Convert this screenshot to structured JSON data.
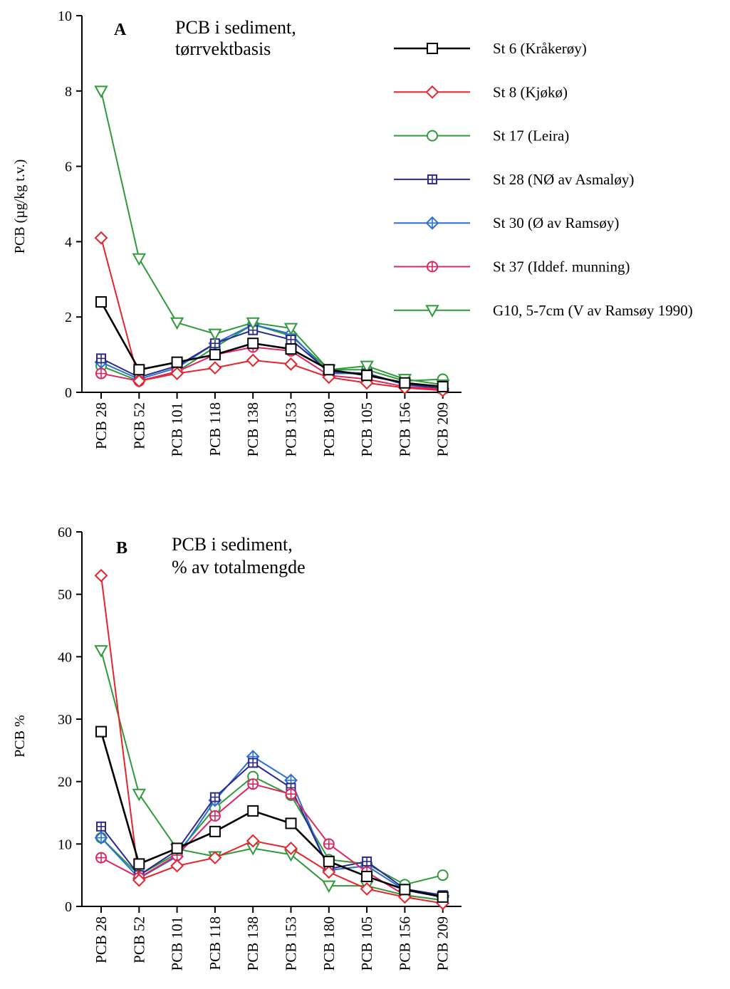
{
  "legend": [
    {
      "name": "St 6 (Kråkerøy)",
      "color": "#000000",
      "marker": "square"
    },
    {
      "name": "St 8 (Kjøkø)",
      "color": "#e8242b",
      "marker": "diamond"
    },
    {
      "name": "St 17 (Leira)",
      "color": "#2e9a3a",
      "marker": "circle"
    },
    {
      "name": "St 28 (NØ av Asmaløy)",
      "color": "#2b2a8c",
      "marker": "square-plus"
    },
    {
      "name": "St 30 (Ø av Ramsøy)",
      "color": "#2a6fd6",
      "marker": "diamond-plus"
    },
    {
      "name": "St 37 (Iddef. munning)",
      "color": "#e0245e",
      "marker": "circle-plus"
    },
    {
      "name": "G10, 5-7cm (V av Ramsøy 1990)",
      "color": "#2e9a3a",
      "marker": "triangle-down"
    }
  ],
  "chart_data": [
    {
      "type": "line",
      "panel": "A",
      "title_line1": "PCB i sediment,",
      "title_line2": "tørrvektbasis",
      "xlabel": "",
      "ylabel": "PCB (µg/kg t.v.)",
      "ylim": [
        0,
        10
      ],
      "yticks": [
        "0",
        "2",
        "4",
        "6",
        "8",
        "10"
      ],
      "categories": [
        "PCB 28",
        "PCB 52",
        "PCB 101",
        "PCB 118",
        "PCB 138",
        "PCB 153",
        "PCB 180",
        "PCB 105",
        "PCB 156",
        "PCB 209"
      ],
      "series": [
        {
          "name": "St 6 (Kråkerøy)",
          "values": [
            2.4,
            0.6,
            0.8,
            1.0,
            1.3,
            1.15,
            0.6,
            0.45,
            0.25,
            0.15
          ]
        },
        {
          "name": "St 8 (Kjøkø)",
          "values": [
            4.1,
            0.3,
            0.5,
            0.65,
            0.85,
            0.75,
            0.4,
            0.25,
            0.12,
            0.05
          ]
        },
        {
          "name": "St 17 (Leira)",
          "values": [
            0.7,
            0.3,
            0.55,
            1.2,
            1.8,
            1.5,
            0.6,
            0.6,
            0.3,
            0.35
          ]
        },
        {
          "name": "St 28 (NØ av Asmaløy)",
          "values": [
            0.9,
            0.4,
            0.7,
            1.3,
            1.65,
            1.4,
            0.55,
            0.5,
            0.22,
            0.1
          ]
        },
        {
          "name": "St 30 (Ø av Ramsøy)",
          "values": [
            0.8,
            0.35,
            0.65,
            1.3,
            1.8,
            1.55,
            0.5,
            0.5,
            0.2,
            0.1
          ]
        },
        {
          "name": "St 37 (Iddef. munning)",
          "values": [
            0.5,
            0.3,
            0.55,
            1.0,
            1.2,
            1.1,
            0.45,
            0.35,
            0.15,
            0.08
          ]
        },
        {
          "name": "G10, 5-7cm (V av Ramsøy 1990)",
          "values": [
            8.0,
            3.55,
            1.85,
            1.55,
            1.85,
            1.7,
            0.6,
            0.7,
            0.35,
            0.2
          ]
        }
      ]
    },
    {
      "type": "line",
      "panel": "B",
      "title_line1": "PCB i sediment,",
      "title_line2": "% av totalmengde",
      "xlabel": "",
      "ylabel": "PCB %",
      "ylim": [
        0,
        60
      ],
      "yticks": [
        "0",
        "10",
        "20",
        "30",
        "40",
        "50",
        "60"
      ],
      "categories": [
        "PCB 28",
        "PCB 52",
        "PCB 101",
        "PCB 118",
        "PCB 138",
        "PCB 153",
        "PCB 180",
        "PCB 105",
        "PCB 156",
        "PCB 209"
      ],
      "series": [
        {
          "name": "St 6 (Kråkerøy)",
          "values": [
            28,
            6.8,
            9.3,
            12,
            15.3,
            13.3,
            7.2,
            4.8,
            2.7,
            1.5
          ]
        },
        {
          "name": "St 8 (Kjøkø)",
          "values": [
            53,
            4.2,
            6.5,
            7.8,
            10.5,
            9.3,
            5.5,
            2.8,
            1.5,
            0.5
          ]
        },
        {
          "name": "St 17 (Leira)",
          "values": [
            11,
            5,
            8.5,
            15.8,
            20.8,
            17.8,
            7.5,
            6.8,
            3.5,
            5
          ]
        },
        {
          "name": "St 28 (NØ av Asmaløy)",
          "values": [
            12.8,
            5,
            9,
            17.5,
            23,
            19,
            6,
            7.2,
            2.8,
            1.8
          ]
        },
        {
          "name": "St 30 (Ø av Ramsøy)",
          "values": [
            11,
            4.5,
            8,
            17,
            24,
            20.2,
            5.8,
            6.5,
            2.6,
            1.5
          ]
        },
        {
          "name": "St 37 (Iddef. munning)",
          "values": [
            7.8,
            4.6,
            8.2,
            14.5,
            19.6,
            18,
            10,
            5.5,
            1.8,
            1
          ]
        },
        {
          "name": "G10, 5-7cm (V av Ramsøy 1990)",
          "values": [
            41,
            18,
            9.2,
            8,
            9.3,
            8.3,
            3.3,
            3.3,
            1.8,
            1
          ]
        }
      ]
    }
  ]
}
